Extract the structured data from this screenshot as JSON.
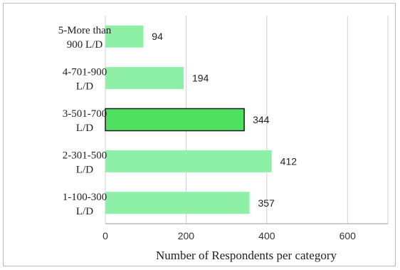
{
  "chart_data": {
    "type": "bar",
    "orientation": "horizontal",
    "categories": [
      [
        "5-More than",
        "900 L/D"
      ],
      [
        "4-701-900",
        "L/D"
      ],
      [
        "3-501-700",
        "L/D"
      ],
      [
        "2-301-500",
        "L/D"
      ],
      [
        "1-100-300",
        "L/D"
      ]
    ],
    "values": [
      94,
      194,
      344,
      412,
      357
    ],
    "highlight_index": 2,
    "colors": {
      "bar": "#8ef0a6",
      "highlight": "#4fe05f",
      "highlight_border": "#1a1a1a",
      "grid": "#d0d0d0"
    },
    "xlabel": "Number of Respondents per category",
    "xlim": [
      0,
      700
    ],
    "xticks": [
      0,
      200,
      400,
      600
    ],
    "grid": true
  }
}
